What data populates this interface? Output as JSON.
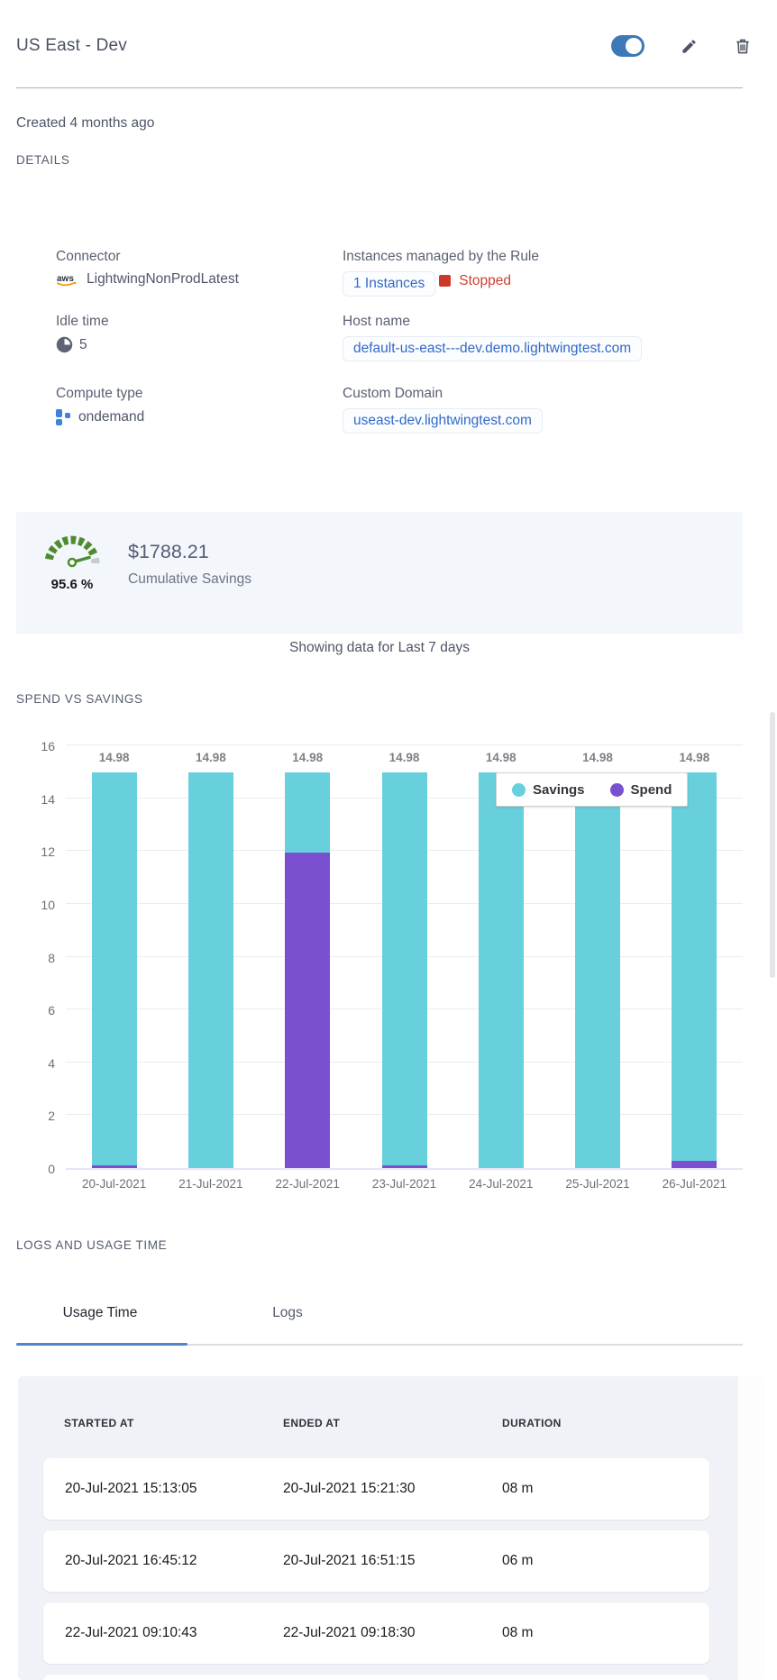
{
  "header": {
    "title": "US East - Dev",
    "toggle_on": true
  },
  "meta": {
    "created": "Created 4 months ago",
    "details_label": "DETAILS"
  },
  "details": {
    "connector": {
      "label": "Connector",
      "icon": "aws-icon",
      "value": "LightwingNonProdLatest"
    },
    "instances": {
      "label": "Instances managed by the Rule",
      "link": "1 Instances",
      "status": "Stopped",
      "status_color": "#ce3f30"
    },
    "idle_time": {
      "label": "Idle time",
      "icon": "clock-icon",
      "value": "5"
    },
    "host_name": {
      "label": "Host name",
      "value": "default-us-east---dev.demo.lightwingtest.com"
    },
    "compute_type": {
      "label": "Compute type",
      "icon": "compute-squares-icon",
      "value": "ondemand"
    },
    "custom_domain": {
      "label": "Custom Domain",
      "value": "useast-dev.lightwingtest.com"
    }
  },
  "savings_card": {
    "percent": "95.6 %",
    "amount": "$1788.21",
    "caption": "Cumulative Savings",
    "gauge_color": "#4d8c2e"
  },
  "period_note": "Showing data for Last 7 days",
  "chart_section_title": "SPEND VS SAVINGS",
  "chart_data": {
    "type": "bar",
    "stacked": true,
    "categories": [
      "20-Jul-2021",
      "21-Jul-2021",
      "22-Jul-2021",
      "23-Jul-2021",
      "24-Jul-2021",
      "25-Jul-2021",
      "26-Jul-2021"
    ],
    "series": [
      {
        "name": "Savings",
        "color": "#68cfdc",
        "values": [
          14.88,
          14.98,
          3.03,
          14.88,
          14.98,
          14.98,
          14.71
        ]
      },
      {
        "name": "Spend",
        "color": "#7a50d0",
        "values": [
          0.1,
          0.0,
          11.95,
          0.1,
          0.0,
          0.0,
          0.27
        ]
      }
    ],
    "bar_total_labels": [
      "14.98",
      "14.98",
      "14.98",
      "14.98",
      "14.98",
      "14.98",
      "14.98"
    ],
    "title": "SPEND VS SAVINGS",
    "xlabel": "",
    "ylabel": "",
    "ylim": [
      0,
      16
    ],
    "ytick_step": 2,
    "grid": true,
    "legend_position": "top-right-inside"
  },
  "logs_section": {
    "title": "LOGS AND USAGE TIME",
    "tabs": [
      {
        "label": "Usage Time",
        "active": true
      },
      {
        "label": "Logs",
        "active": false
      }
    ]
  },
  "usage_table": {
    "columns": [
      "STARTED AT",
      "ENDED AT",
      "DURATION"
    ],
    "rows": [
      [
        "20-Jul-2021 15:13:05",
        "20-Jul-2021 15:21:30",
        "08 m"
      ],
      [
        "20-Jul-2021 16:45:12",
        "20-Jul-2021 16:51:15",
        "06 m"
      ],
      [
        "22-Jul-2021 09:10:43",
        "22-Jul-2021 09:18:30",
        "08 m"
      ]
    ],
    "partial_row_visible": true
  },
  "colors": {
    "accent_blue": "#3d79b7",
    "link_blue": "#3069c9",
    "status_red": "#ce3f30",
    "savings_teal": "#68cfdc",
    "spend_purple": "#7a50d0",
    "tab_blue": "#4d87c7",
    "panel_bg": "#f1f2f7",
    "card_bg": "#f3f6fa"
  }
}
